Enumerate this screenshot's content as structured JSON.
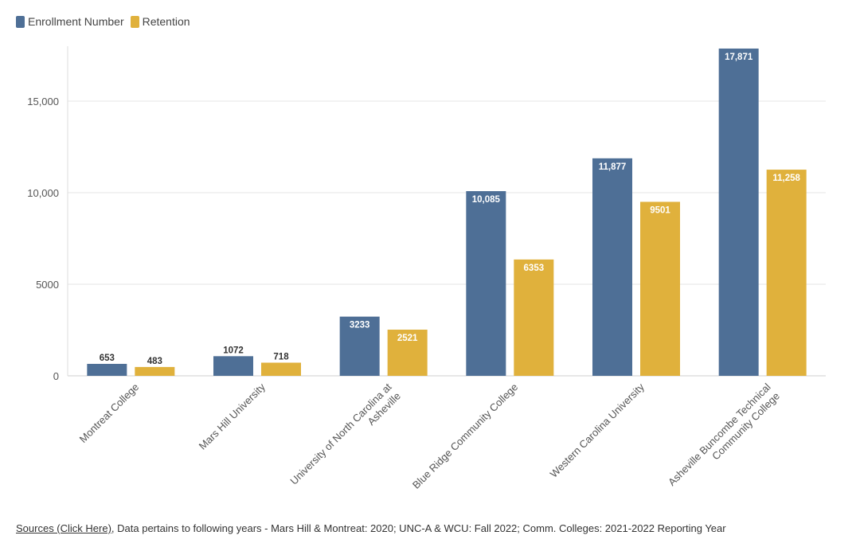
{
  "chart_data": {
    "type": "bar",
    "categories": [
      "Montreat College",
      "Mars Hill University",
      "University of North Carolina at Asheville",
      "Blue Ridge Community College",
      "Western Carolina University",
      "Asheville Buncombe Technical Community College"
    ],
    "category_lines": [
      [
        "Montreat College"
      ],
      [
        "Mars Hill University"
      ],
      [
        "University of North Carolina at",
        "Asheville"
      ],
      [
        "Blue Ridge Community College"
      ],
      [
        "Western Carolina University"
      ],
      [
        "Asheville Buncombe Technical",
        "Community College"
      ]
    ],
    "series": [
      {
        "name": "Enrollment Number",
        "color": "#4e6f96",
        "values": [
          653,
          1072,
          3233,
          10085,
          11877,
          17871
        ],
        "labels": [
          "653",
          "1072",
          "3233",
          "10,085",
          "11,877",
          "17,871"
        ]
      },
      {
        "name": "Retention",
        "color": "#e0b13c",
        "values": [
          483,
          718,
          2521,
          6353,
          9501,
          11258
        ],
        "labels": [
          "483",
          "718",
          "2521",
          "6353",
          "9501",
          "11,258"
        ]
      }
    ],
    "yticks": [
      0,
      5000,
      10000,
      15000
    ],
    "ytick_labels": [
      "0",
      "5000",
      "10,000",
      "15,000"
    ],
    "ylim": [
      0,
      18000
    ],
    "grid": true,
    "legend_position": "top-left"
  },
  "footer": {
    "link_text": "Sources (Click Here)",
    "text": ", Data pertains to following years - Mars Hill & Montreat: 2020; UNC-A & WCU: Fall 2022; Comm. Colleges: 2021-2022 Reporting Year"
  }
}
